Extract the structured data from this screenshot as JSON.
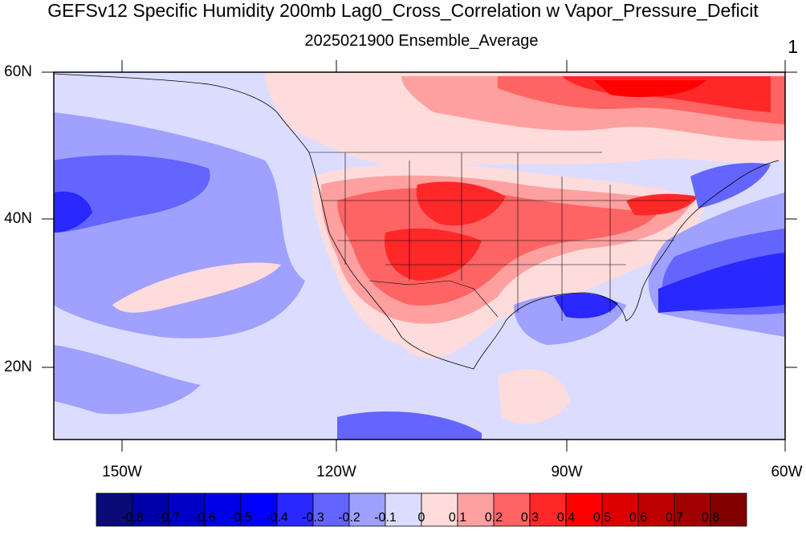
{
  "title": "GEFSv12 Specific Humidity 200mb Lag0_Cross_Correlation w Vapor_Pressure_Deficit",
  "subtitle": "2025021900 Ensemble_Average",
  "corner_label": "1",
  "lat_labels": [
    "60N",
    "40N",
    "20N"
  ],
  "lon_labels": [
    "150W",
    "120W",
    "90W",
    "60W"
  ],
  "colorbar": {
    "ticks": [
      "-0.8",
      "-0.7",
      "-0.6",
      "-0.5",
      "-0.4",
      "-0.3",
      "-0.2",
      "-0.1",
      "0",
      "0.1",
      "0.2",
      "0.3",
      "0.4",
      "0.5",
      "0.6",
      "0.7",
      "0.8"
    ],
    "colors": [
      "#0a0a78",
      "#0000aa",
      "#0000c8",
      "#0000e6",
      "#0000ff",
      "#2828ff",
      "#6464ff",
      "#a0a0ff",
      "#dcdcff",
      "#ffdcdc",
      "#ffa0a0",
      "#ff6464",
      "#ff2828",
      "#ff0000",
      "#dc0000",
      "#be0000",
      "#a00000",
      "#820000"
    ]
  },
  "map": {
    "extent_lon": [
      -160,
      -60
    ],
    "extent_lat": [
      10,
      60
    ],
    "variable": "lag-0 cross correlation",
    "region": "North America / North Pacific / Western Atlantic"
  }
}
